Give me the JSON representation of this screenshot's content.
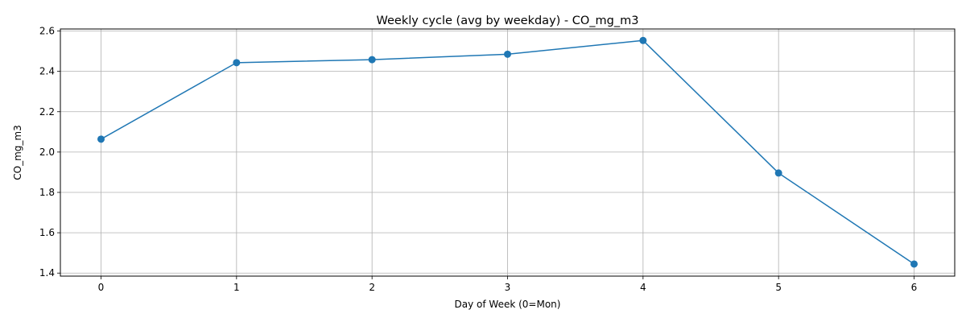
{
  "chart_data": {
    "type": "line",
    "title": "Weekly cycle (avg by weekday) - CO_mg_m3",
    "xlabel": "Day of Week (0=Mon)",
    "ylabel": "CO_mg_m3",
    "xlim": [
      -0.3,
      6.3
    ],
    "ylim": [
      1.385,
      2.61
    ],
    "xticks": [
      0,
      1,
      2,
      3,
      4,
      5,
      6
    ],
    "yticks": [
      1.4,
      1.6,
      1.8,
      2.0,
      2.2,
      2.4,
      2.6
    ],
    "grid": true,
    "series": [
      {
        "color": "#1f77b4",
        "marker": "circle",
        "x": [
          0,
          1,
          2,
          3,
          4,
          5,
          6
        ],
        "y": [
          2.064,
          2.443,
          2.458,
          2.485,
          2.553,
          1.896,
          1.445
        ]
      }
    ]
  }
}
